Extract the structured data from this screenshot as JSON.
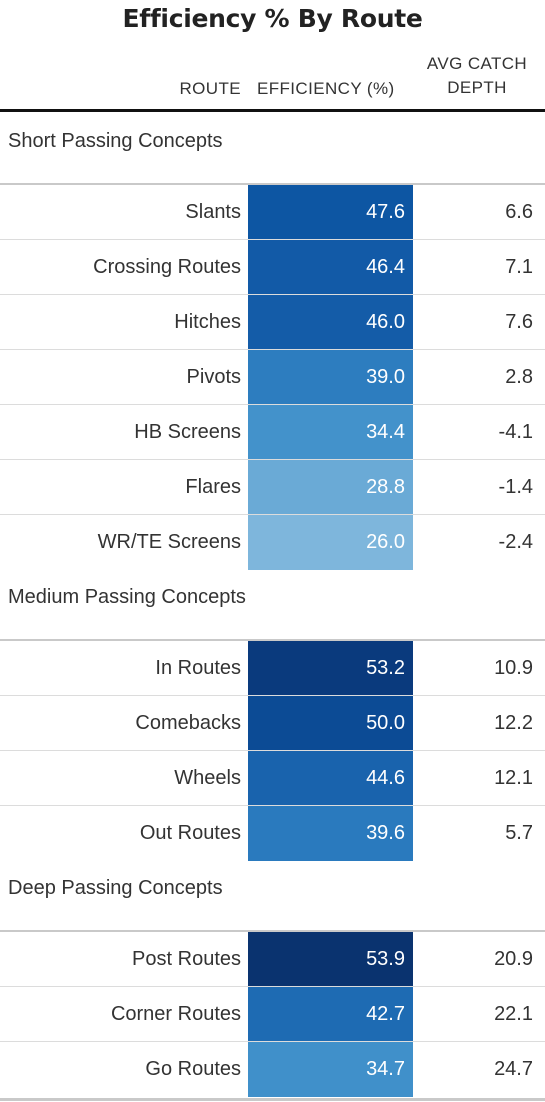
{
  "chart_data": {
    "type": "table",
    "title": "Efficiency % By Route",
    "columns": {
      "route": "ROUTE",
      "efficiency": "EFFICIENCY (%)",
      "depth_line1": "AVG CATCH",
      "depth_line2": "DEPTH"
    },
    "groups": [
      {
        "name": "Short Passing Concepts",
        "rows": [
          {
            "route": "Slants",
            "efficiency": "47.6",
            "depth": "6.6",
            "color": "#0d56a3"
          },
          {
            "route": "Crossing Routes",
            "efficiency": "46.4",
            "depth": "7.1",
            "color": "#125aa7"
          },
          {
            "route": "Hitches",
            "efficiency": "46.0",
            "depth": "7.6",
            "color": "#145ca8"
          },
          {
            "route": "Pivots",
            "efficiency": "39.0",
            "depth": "2.8",
            "color": "#2d7dbf"
          },
          {
            "route": "HB Screens",
            "efficiency": "34.4",
            "depth": "-4.1",
            "color": "#4392cb"
          },
          {
            "route": "Flares",
            "efficiency": "28.8",
            "depth": "-1.4",
            "color": "#6aaad6"
          },
          {
            "route": "WR/TE Screens",
            "efficiency": "26.0",
            "depth": "-2.4",
            "color": "#7eb6dc"
          }
        ]
      },
      {
        "name": "Medium Passing Concepts",
        "rows": [
          {
            "route": "In Routes",
            "efficiency": "53.2",
            "depth": "10.9",
            "color": "#0a3a7d"
          },
          {
            "route": "Comebacks",
            "efficiency": "50.0",
            "depth": "12.2",
            "color": "#0c4b95"
          },
          {
            "route": "Wheels",
            "efficiency": "44.6",
            "depth": "12.1",
            "color": "#1963ad"
          },
          {
            "route": "Out Routes",
            "efficiency": "39.6",
            "depth": "5.7",
            "color": "#2a7abe"
          }
        ]
      },
      {
        "name": "Deep Passing Concepts",
        "rows": [
          {
            "route": "Post Routes",
            "efficiency": "53.9",
            "depth": "20.9",
            "color": "#0a336f"
          },
          {
            "route": "Corner Routes",
            "efficiency": "42.7",
            "depth": "22.1",
            "color": "#1e6bb3"
          },
          {
            "route": "Go Routes",
            "efficiency": "34.7",
            "depth": "24.7",
            "color": "#4090ca"
          }
        ]
      }
    ]
  }
}
